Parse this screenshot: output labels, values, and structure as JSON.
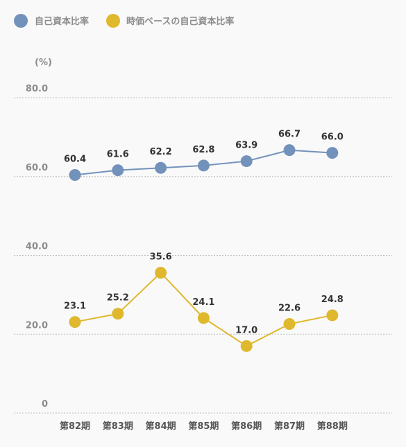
{
  "chart_data": {
    "type": "line",
    "unit_label": "(%)",
    "categories": [
      "第82期",
      "第83期",
      "第84期",
      "第85期",
      "第86期",
      "第87期",
      "第88期"
    ],
    "series": [
      {
        "name": "自己資本比率",
        "color": "#7392bb",
        "values": [
          60.4,
          61.6,
          62.2,
          62.8,
          63.9,
          66.7,
          66.0
        ]
      },
      {
        "name": "時価ベースの自己資本比率",
        "color": "#e0b82e",
        "values": [
          23.1,
          25.2,
          35.6,
          24.1,
          17.0,
          22.6,
          24.8
        ]
      }
    ],
    "y_ticks": [
      "0",
      "20.0",
      "40.0",
      "60.0",
      "80.0"
    ],
    "ylim": [
      0,
      80
    ],
    "grid": "dashed-horizontal",
    "legend_position": "top-left"
  }
}
